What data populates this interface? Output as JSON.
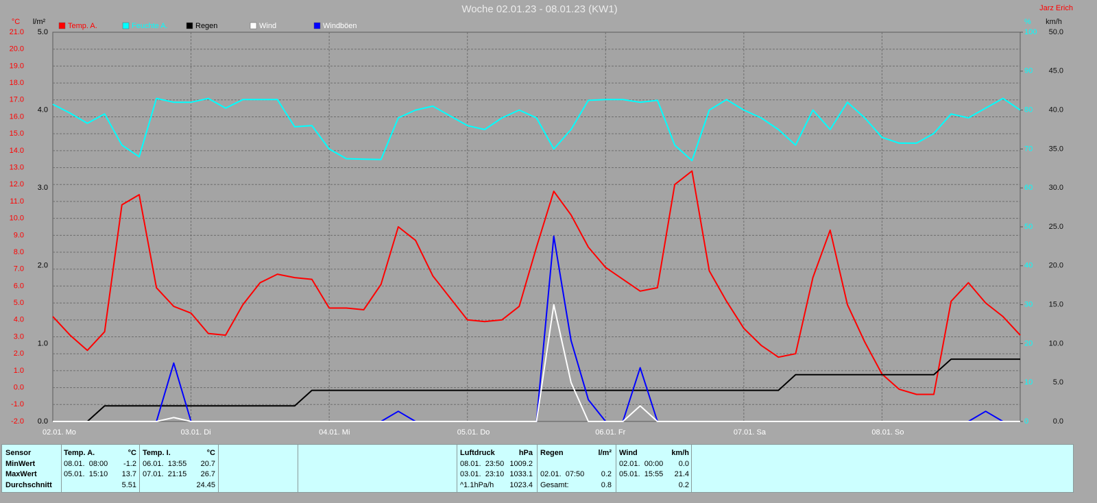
{
  "chart_data": {
    "type": "line",
    "title": "Woche 02.01.23 - 08.01.23 (KW1)",
    "author": "Jarz Erich",
    "xticks": [
      "02.01. Mo",
      "03.01. Di",
      "04.01. Mi",
      "05.01. Do",
      "06.01. Fr",
      "07.01. Sa",
      "08.01. So"
    ],
    "ylabel": "°C",
    "ylim": [
      -2,
      21
    ],
    "yticks": [
      {
        "value": -2,
        "label": "-2.0"
      },
      {
        "value": -1,
        "label": "-1.0"
      },
      {
        "value": 0,
        "label": "0.0"
      },
      {
        "value": 1,
        "label": "1.0"
      },
      {
        "value": 2,
        "label": "2.0"
      },
      {
        "value": 3,
        "label": "3.0"
      },
      {
        "value": 4,
        "label": "4.0"
      },
      {
        "value": 5,
        "label": "5.0"
      },
      {
        "value": 6,
        "label": "6.0"
      },
      {
        "value": 7,
        "label": "7.0"
      },
      {
        "value": 8,
        "label": "8.0"
      },
      {
        "value": 9,
        "label": "9.0"
      },
      {
        "value": 10,
        "label": "10.0"
      },
      {
        "value": 11,
        "label": "11.0"
      },
      {
        "value": 12,
        "label": "12.0"
      },
      {
        "value": 13,
        "label": "13.0"
      },
      {
        "value": 14,
        "label": "14.0"
      },
      {
        "value": 15,
        "label": "15.0"
      },
      {
        "value": 16,
        "label": "16.0"
      },
      {
        "value": 17,
        "label": "17.0"
      },
      {
        "value": 18,
        "label": "18.0"
      },
      {
        "value": 19,
        "label": "19.0"
      },
      {
        "value": 20,
        "label": "20.0"
      },
      {
        "value": 21,
        "label": "21.0"
      }
    ],
    "y2label": "l/m²",
    "y2lim": [
      0,
      5
    ],
    "y2ticks": [
      {
        "value": 0,
        "label": "0.0"
      },
      {
        "value": 1,
        "label": "1.0"
      },
      {
        "value": 2,
        "label": "2.0"
      },
      {
        "value": 3,
        "label": "3.0"
      },
      {
        "value": 4,
        "label": "4.0"
      },
      {
        "value": 5,
        "label": "5.0"
      }
    ],
    "y3label": "%",
    "y3lim": [
      0,
      100
    ],
    "y3ticks": [
      0,
      10,
      20,
      30,
      40,
      50,
      60,
      70,
      80,
      90,
      100
    ],
    "y4label": "km/h",
    "y4lim": [
      0,
      50
    ],
    "y4ticks": [
      {
        "value": 0,
        "label": "0.0"
      },
      {
        "value": 5,
        "label": "5.0"
      },
      {
        "value": 10,
        "label": "10.0"
      },
      {
        "value": 15,
        "label": "15.0"
      },
      {
        "value": 20,
        "label": "20.0"
      },
      {
        "value": 25,
        "label": "25.0"
      },
      {
        "value": 30,
        "label": "30.0"
      },
      {
        "value": 35,
        "label": "35.0"
      },
      {
        "value": 40,
        "label": "40.0"
      },
      {
        "value": 45,
        "label": "45.0"
      },
      {
        "value": 50,
        "label": "50.0"
      }
    ],
    "grid": true,
    "series": [
      {
        "name": "Feuchte A.",
        "color": "#00ffff",
        "axis": "y3",
        "values": [
          81.5,
          79.2,
          76.6,
          79,
          71,
          68,
          83,
          82,
          82,
          83,
          80.5,
          82.7,
          82.7,
          82.7,
          75.7,
          76,
          70,
          67.5,
          67.4,
          67.3,
          78,
          80,
          81,
          78.5,
          76,
          75,
          78,
          80,
          78,
          70,
          75,
          82.5,
          82.7,
          82.7,
          82,
          82.5,
          71,
          67,
          80,
          82.7,
          80,
          78,
          75,
          71,
          80,
          75,
          82,
          78,
          73,
          71.5,
          71.5,
          74,
          79,
          78,
          80.5,
          83,
          80
        ]
      },
      {
        "name": "Temp. A.",
        "color": "#ff0000",
        "axis": "y",
        "values": [
          4.2,
          3.1,
          2.2,
          3.3,
          10.8,
          11.4,
          5.9,
          4.8,
          4.4,
          3.2,
          3.1,
          4.9,
          6.2,
          6.7,
          6.5,
          6.4,
          4.7,
          4.7,
          4.6,
          6.1,
          9.5,
          8.7,
          6.6,
          5.3,
          4.0,
          3.9,
          4.0,
          4.8,
          8.3,
          11.6,
          10.2,
          8.3,
          7.1,
          6.4,
          5.7,
          5.9,
          12.0,
          12.8,
          6.9,
          5.1,
          3.5,
          2.5,
          1.8,
          2.0,
          6.5,
          9.3,
          4.9,
          2.7,
          0.8,
          -0.1,
          -0.4,
          -0.4,
          5.1,
          6.2,
          5.0,
          4.2,
          3.1
        ]
      },
      {
        "name": "Regen",
        "color": "#000000",
        "axis": "y2",
        "values": [
          0,
          0,
          0,
          0.2,
          0.2,
          0.2,
          0.2,
          0.2,
          0.2,
          0.2,
          0.2,
          0.2,
          0.2,
          0.2,
          0.2,
          0.4,
          0.4,
          0.4,
          0.4,
          0.4,
          0.4,
          0.4,
          0.4,
          0.4,
          0.4,
          0.4,
          0.4,
          0.4,
          0.4,
          0.4,
          0.4,
          0.4,
          0.4,
          0.4,
          0.4,
          0.4,
          0.4,
          0.4,
          0.4,
          0.4,
          0.4,
          0.4,
          0.4,
          0.6,
          0.6,
          0.6,
          0.6,
          0.6,
          0.6,
          0.6,
          0.6,
          0.6,
          0.8,
          0.8,
          0.8,
          0.8,
          0.8
        ]
      },
      {
        "name": "Windböen",
        "color": "#0000ff",
        "axis": "y4",
        "values": [
          0,
          0,
          0,
          0,
          0,
          0,
          0,
          7.5,
          0,
          0,
          0,
          0,
          0,
          0,
          0,
          0,
          0,
          0,
          0,
          0,
          1.3,
          0,
          0,
          0,
          0,
          0,
          0,
          0,
          0,
          23.8,
          10.4,
          2.8,
          0,
          0,
          6.9,
          0,
          0,
          0,
          0,
          0,
          0,
          0,
          0,
          0,
          0,
          0,
          0,
          0,
          0,
          0,
          0,
          0,
          0,
          0,
          1.3,
          0,
          0
        ]
      },
      {
        "name": "Wind",
        "color": "#ffffff",
        "axis": "y4",
        "values": [
          0,
          0,
          0,
          0,
          0,
          0,
          0,
          0.5,
          0,
          0,
          0,
          0,
          0,
          0,
          0,
          0,
          0,
          0,
          0,
          0,
          0,
          0,
          0,
          0,
          0,
          0,
          0,
          0,
          0,
          15,
          5,
          0,
          0,
          0,
          2,
          0,
          0,
          0,
          0,
          0,
          0,
          0,
          0,
          0,
          0,
          0,
          0,
          0,
          0,
          0,
          0,
          0,
          0,
          0,
          0,
          0,
          0
        ]
      }
    ]
  },
  "stats": {
    "header": "Sensor",
    "row_labels": [
      "MinWert",
      "MaxWert",
      "Durchschnitt"
    ],
    "blocks": [
      {
        "name": "Temp. A.",
        "unit": "°C",
        "rows": [
          {
            "time": "08.01.  08:00",
            "value": "-1.2"
          },
          {
            "time": "05.01.  15:10",
            "value": "13.7"
          },
          {
            "value": "5.51"
          }
        ]
      },
      {
        "name": "Temp. I.",
        "unit": "°C",
        "rows": [
          {
            "time": "06.01.  13:55",
            "value": "20.7"
          },
          {
            "time": "07.01.  21:15",
            "value": "26.7"
          },
          {
            "value": "24.45"
          }
        ]
      },
      {
        "name": "Luftdruck",
        "unit": "hPa",
        "rows": [
          {
            "time": "08.01.  23:50",
            "value": "1009.2"
          },
          {
            "time": "03.01.  23:10",
            "value": "1033.1"
          },
          {
            "time": "^1.1hPa/h",
            "value": "1023.4"
          }
        ]
      },
      {
        "name": "Regen",
        "unit": "l/m²",
        "rows": [
          null,
          {
            "time": "02.01.  07:50",
            "value": "0.2"
          },
          {
            "time": "Gesamt:",
            "value": "0.8"
          }
        ]
      },
      {
        "name": "Wind",
        "unit": "km/h",
        "rows": [
          {
            "time": "02.01.  00:00",
            "value": "0.0"
          },
          {
            "time": "05.01.  15:55",
            "value": "21.4"
          },
          {
            "value": "0.2"
          }
        ]
      }
    ]
  }
}
